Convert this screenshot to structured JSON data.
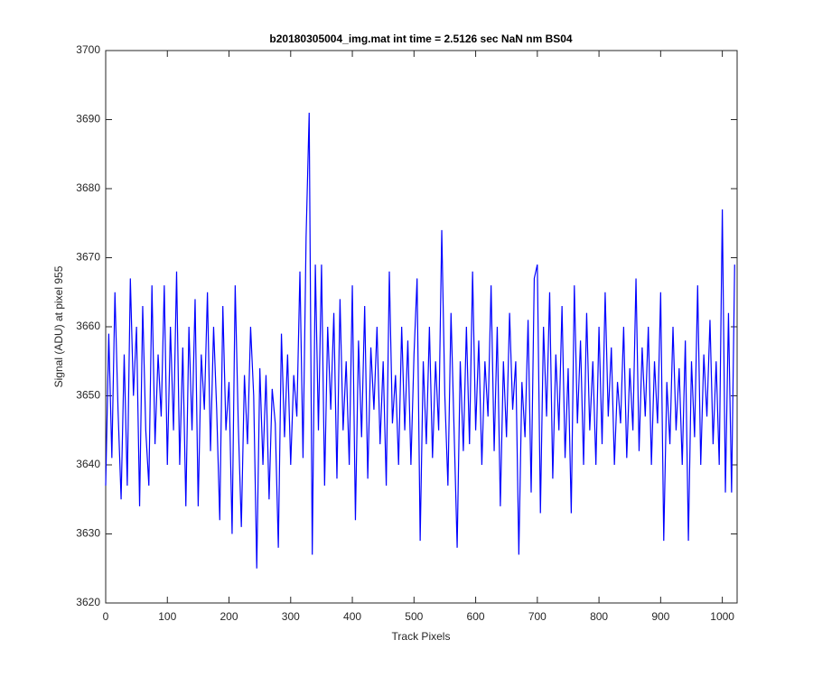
{
  "chart_data": {
    "type": "line",
    "title": "b20180305004_img.mat int time = 2.5126 sec  NaN nm BS04",
    "xlabel": "Track Pixels",
    "ylabel": "Signal (ADU) at pixel 955",
    "xlim": [
      0,
      1024
    ],
    "ylim": [
      3620,
      3700
    ],
    "xticks": [
      0,
      100,
      200,
      300,
      400,
      500,
      600,
      700,
      800,
      900,
      1000
    ],
    "yticks": [
      3620,
      3630,
      3640,
      3650,
      3660,
      3670,
      3680,
      3690,
      3700
    ],
    "grid": false,
    "x": [
      0,
      5,
      10,
      15,
      20,
      25,
      30,
      35,
      40,
      45,
      50,
      55,
      60,
      65,
      70,
      75,
      80,
      85,
      90,
      95,
      100,
      105,
      110,
      115,
      120,
      125,
      130,
      135,
      140,
      145,
      150,
      155,
      160,
      165,
      170,
      175,
      180,
      185,
      190,
      195,
      200,
      205,
      210,
      215,
      220,
      225,
      230,
      235,
      240,
      245,
      250,
      255,
      260,
      265,
      270,
      275,
      280,
      285,
      290,
      295,
      300,
      305,
      310,
      315,
      320,
      325,
      330,
      335,
      340,
      345,
      350,
      355,
      360,
      365,
      370,
      375,
      380,
      385,
      390,
      395,
      400,
      405,
      410,
      415,
      420,
      425,
      430,
      435,
      440,
      445,
      450,
      455,
      460,
      465,
      470,
      475,
      480,
      485,
      490,
      495,
      500,
      505,
      510,
      515,
      520,
      525,
      530,
      535,
      540,
      545,
      550,
      555,
      560,
      565,
      570,
      575,
      580,
      585,
      590,
      595,
      600,
      605,
      610,
      615,
      620,
      625,
      630,
      635,
      640,
      645,
      650,
      655,
      660,
      665,
      670,
      675,
      680,
      685,
      690,
      695,
      700,
      705,
      710,
      715,
      720,
      725,
      730,
      735,
      740,
      745,
      750,
      755,
      760,
      765,
      770,
      775,
      780,
      785,
      790,
      795,
      800,
      805,
      810,
      815,
      820,
      825,
      830,
      835,
      840,
      845,
      850,
      855,
      860,
      865,
      870,
      875,
      880,
      885,
      890,
      895,
      900,
      905,
      910,
      915,
      920,
      925,
      930,
      935,
      940,
      945,
      950,
      955,
      960,
      965,
      970,
      975,
      980,
      985,
      990,
      995,
      1000,
      1005,
      1010,
      1015,
      1020
    ],
    "series": [
      {
        "color": "#0000ff",
        "values": [
          3637,
          3659,
          3641,
          3665,
          3648,
          3635,
          3656,
          3637,
          3667,
          3650,
          3660,
          3634,
          3663,
          3645,
          3637,
          3666,
          3643,
          3656,
          3647,
          3666,
          3640,
          3660,
          3645,
          3668,
          3640,
          3657,
          3634,
          3660,
          3645,
          3664,
          3634,
          3656,
          3648,
          3665,
          3642,
          3660,
          3648,
          3632,
          3663,
          3645,
          3652,
          3630,
          3666,
          3646,
          3631,
          3653,
          3643,
          3660,
          3650,
          3625,
          3654,
          3640,
          3653,
          3635,
          3651,
          3646,
          3628,
          3659,
          3644,
          3656,
          3640,
          3653,
          3647,
          3668,
          3641,
          3673,
          3691,
          3627,
          3669,
          3645,
          3669,
          3637,
          3660,
          3648,
          3662,
          3638,
          3664,
          3645,
          3655,
          3640,
          3666,
          3632,
          3658,
          3644,
          3663,
          3638,
          3657,
          3648,
          3660,
          3643,
          3655,
          3637,
          3668,
          3646,
          3653,
          3640,
          3660,
          3645,
          3658,
          3640,
          3656,
          3667,
          3629,
          3655,
          3643,
          3660,
          3641,
          3655,
          3645,
          3674,
          3650,
          3637,
          3662,
          3645,
          3628,
          3655,
          3642,
          3660,
          3643,
          3668,
          3645,
          3658,
          3640,
          3655,
          3647,
          3666,
          3642,
          3660,
          3634,
          3655,
          3644,
          3662,
          3648,
          3655,
          3627,
          3652,
          3644,
          3661,
          3636,
          3667,
          3669,
          3633,
          3660,
          3647,
          3665,
          3638,
          3656,
          3645,
          3663,
          3641,
          3654,
          3633,
          3666,
          3646,
          3658,
          3640,
          3662,
          3645,
          3655,
          3640,
          3660,
          3643,
          3665,
          3647,
          3657,
          3640,
          3652,
          3646,
          3660,
          3641,
          3654,
          3645,
          3667,
          3642,
          3657,
          3647,
          3660,
          3640,
          3655,
          3646,
          3665,
          3629,
          3652,
          3643,
          3660,
          3645,
          3654,
          3640,
          3658,
          3629,
          3655,
          3644,
          3666,
          3640,
          3656,
          3647,
          3661,
          3643,
          3655,
          3640,
          3677,
          3636,
          3662,
          3636,
          3669
        ]
      }
    ]
  }
}
